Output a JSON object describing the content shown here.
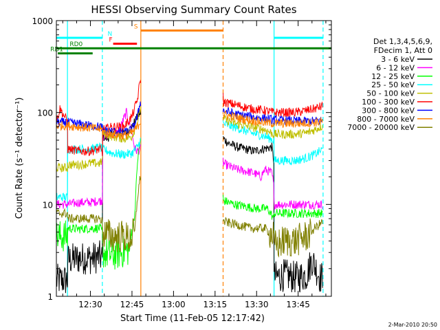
{
  "chart_data": {
    "type": "line",
    "title": "HESSI Observing Summary Count Rates",
    "xlabel": "Start Time (11-Feb-05 12:17:42)",
    "ylabel": "Count Rate (s⁻¹ detector⁻¹)",
    "yscale": "log",
    "xlim_minutes": [
      17.7,
      117.0
    ],
    "ylim": [
      1,
      1000
    ],
    "y_tick_labels": [
      "1",
      "10",
      "100",
      "1000"
    ],
    "x_tick_labels": [
      "12:30",
      "12:45",
      "13:00",
      "13:15",
      "13:30",
      "13:45"
    ],
    "x_tick_minutes": [
      30,
      45,
      60,
      75,
      90,
      105
    ],
    "footer_date": "2-Mar-2010 20:50",
    "legend": {
      "header": [
        "Det 1,3,4,5,6,9,",
        "FDecim 1, Att 0"
      ],
      "position": "right"
    },
    "time_markers": [
      {
        "minute": 21.7,
        "color": "#00ffff",
        "style": "solid"
      },
      {
        "minute": 34.3,
        "color": "#00ffff",
        "style": "dashed"
      },
      {
        "minute": 48.2,
        "color": "#ff8000",
        "style": "solid"
      },
      {
        "minute": 77.9,
        "color": "#ff8000",
        "style": "dashed"
      },
      {
        "minute": 96.3,
        "color": "#00ffff",
        "style": "solid"
      },
      {
        "minute": 114.0,
        "color": "#00ffff",
        "style": "dashed"
      }
    ],
    "flags": [
      {
        "label": "",
        "color": "#00ffff",
        "segments": [
          [
            17.7,
            34.3
          ],
          [
            96.3,
            114.0
          ]
        ],
        "level": 650
      },
      {
        "label": "N",
        "color": "#00ffff",
        "segments": [],
        "level": 650,
        "label_minute": 36.2
      },
      {
        "label": "S",
        "color": "#ff8000",
        "segments": [
          [
            48.2,
            77.9
          ]
        ],
        "level": 780,
        "label_minute": 45.7
      },
      {
        "label": "F",
        "color": "#ff0000",
        "segments": [
          [
            38.2,
            46.8
          ]
        ],
        "level": 560,
        "label_minute": 36.7
      },
      {
        "label": "RD0",
        "color": "#008000",
        "segments": [
          [
            17.7,
            117.0
          ]
        ],
        "level": 500,
        "label_minute": 22.5
      },
      {
        "label": "RD1",
        "color": "#008000",
        "segments": [
          [
            18.2,
            30.8
          ]
        ],
        "level": 440,
        "label_minute": 15.5
      }
    ],
    "series": [
      {
        "name": "3 - 6 keV",
        "color": "#000000",
        "x": [
          17.7,
          21.7,
          21.8,
          26.0,
          30.0,
          33.5,
          34.3,
          34.4,
          36.0,
          38.0,
          40.0,
          43.0,
          45.0,
          46.5,
          47.5,
          48.0,
          77.9,
          78.0,
          80.0,
          83.0,
          86.0,
          89.0,
          92.0,
          95.5,
          96.2,
          96.3,
          100.0,
          104.0,
          108.0,
          110.0,
          111.5,
          113.0,
          114.0
        ],
        "values": [
          1.5,
          1.5,
          2.5,
          2.6,
          2.6,
          2.7,
          2.5,
          55,
          52,
          60,
          58,
          60,
          70,
          85,
          95,
          100,
          55,
          52,
          46,
          42,
          40,
          38,
          40,
          42,
          30,
          1.6,
          1.7,
          1.6,
          1.7,
          2.5,
          2.0,
          1.6,
          1.6
        ]
      },
      {
        "name": "6 - 12 keV",
        "color": "#ff00ff",
        "x": [
          17.7,
          21.7,
          21.8,
          26.0,
          30.0,
          33.5,
          34.3,
          34.4,
          37.0,
          40.0,
          43.0,
          45.0,
          46.0,
          47.0,
          48.0,
          77.9,
          78.0,
          80.0,
          83.0,
          86.0,
          89.0,
          91.5,
          93.0,
          95.5,
          96.2,
          96.3,
          100.0,
          104.0,
          108.0,
          111.0,
          114.0
        ],
        "values": [
          10,
          10,
          10,
          10.5,
          10.5,
          11,
          11,
          55,
          58,
          60,
          100,
          60,
          40,
          38,
          40,
          30,
          28,
          26,
          24,
          23,
          22,
          20,
          24,
          22,
          16,
          10,
          10,
          10,
          10,
          10,
          10
        ]
      },
      {
        "name": "12 - 25 keV",
        "color": "#00ff00",
        "x": [
          17.7,
          21.7,
          21.8,
          26.0,
          30.0,
          33.5,
          34.3,
          34.4,
          38.0,
          41.0,
          44.0,
          46.0,
          47.0,
          48.0,
          77.9,
          78.0,
          82.0,
          86.0,
          90.0,
          94.0,
          96.2,
          96.3,
          100.0,
          104.0,
          108.0,
          111.0,
          114.0
        ],
        "values": [
          4.5,
          4.5,
          5.5,
          5.4,
          5.5,
          5.5,
          5.0,
          3.0,
          2.8,
          3.0,
          3.2,
          8,
          30,
          50,
          12,
          11,
          10,
          9.5,
          9,
          9,
          7,
          8,
          8,
          8,
          8,
          8,
          8
        ]
      },
      {
        "name": "25 - 50 keV",
        "color": "#00ffff",
        "x": [
          17.7,
          21.7,
          21.8,
          26.0,
          30.0,
          33.5,
          34.3,
          34.4,
          38.0,
          42.0,
          45.0,
          47.0,
          48.0,
          77.9,
          78.0,
          83.0,
          88.0,
          93.0,
          96.2,
          96.3,
          100.0,
          104.0,
          108.0,
          111.0,
          114.0
        ],
        "values": [
          12,
          12,
          40,
          40,
          40,
          42,
          40,
          40,
          36,
          35,
          36,
          42,
          50,
          80,
          75,
          68,
          60,
          55,
          50,
          30,
          30,
          30,
          32,
          35,
          40
        ]
      },
      {
        "name": "50 - 100 keV",
        "color": "#bfbf00",
        "x": [
          17.7,
          21.7,
          21.8,
          26.0,
          30.0,
          33.5,
          34.3,
          34.4,
          38.0,
          42.0,
          45.0,
          47.0,
          48.0,
          77.9,
          78.0,
          83.0,
          88.0,
          93.0,
          96.3,
          100.0,
          104.0,
          108.0,
          111.0,
          114.0
        ],
        "values": [
          25,
          25,
          27,
          27,
          28,
          28,
          30,
          60,
          55,
          52,
          55,
          80,
          110,
          90,
          85,
          75,
          70,
          65,
          58,
          58,
          58,
          60,
          65,
          72
        ]
      },
      {
        "name": "100 - 300 keV",
        "color": "#ff0000",
        "x": [
          17.7,
          19.0,
          21.7,
          21.8,
          26.0,
          30.0,
          33.5,
          34.3,
          34.4,
          38.0,
          42.0,
          45.0,
          47.0,
          48.0,
          77.9,
          78.0,
          83.0,
          88.0,
          93.0,
          96.3,
          100.0,
          104.0,
          108.0,
          111.0,
          114.0
        ],
        "values": [
          80,
          110,
          80,
          40,
          38,
          38,
          40,
          35,
          65,
          70,
          70,
          90,
          140,
          230,
          150,
          130,
          120,
          110,
          105,
          100,
          100,
          100,
          105,
          110,
          118
        ]
      },
      {
        "name": "300 - 800 keV",
        "color": "#0000ff",
        "x": [
          17.7,
          21.7,
          26.0,
          30.0,
          33.5,
          34.3,
          34.4,
          38.0,
          42.0,
          45.0,
          47.0,
          48.0,
          77.9,
          78.0,
          83.0,
          88.0,
          93.0,
          96.3,
          100.0,
          104.0,
          108.0,
          111.0,
          114.0
        ],
        "values": [
          78,
          78,
          75,
          72,
          70,
          68,
          65,
          62,
          60,
          65,
          90,
          130,
          110,
          105,
          95,
          90,
          86,
          83,
          82,
          81,
          80,
          81,
          82
        ]
      },
      {
        "name": "800 - 7000 keV",
        "color": "#ff8000",
        "x": [
          17.7,
          21.7,
          26.0,
          30.0,
          33.5,
          34.3,
          34.4,
          38.0,
          42.0,
          45.0,
          47.0,
          48.0,
          77.9,
          78.0,
          83.0,
          88.0,
          93.0,
          96.3,
          100.0,
          104.0,
          108.0,
          111.0,
          114.0
        ],
        "values": [
          72,
          72,
          70,
          68,
          66,
          64,
          62,
          58,
          56,
          60,
          70,
          80,
          100,
          95,
          88,
          82,
          78,
          76,
          76,
          76,
          77,
          78,
          80
        ]
      },
      {
        "name": "7000 - 20000 keV",
        "color": "#808000",
        "x": [
          17.7,
          21.7,
          21.8,
          26.0,
          30.0,
          33.5,
          34.3,
          34.4,
          38.0,
          42.0,
          44.0,
          46.0,
          47.0,
          48.0,
          77.9,
          78.0,
          83.0,
          88.0,
          93.0,
          96.2,
          96.3,
          100.0,
          104.0,
          108.0,
          111.0,
          114.0
        ],
        "values": [
          8,
          8,
          7,
          7,
          7,
          7,
          6.5,
          5,
          4.5,
          4.5,
          4.2,
          5,
          12,
          20,
          7,
          6.5,
          6,
          5.5,
          5.5,
          4.5,
          3.5,
          4,
          4,
          4.5,
          5.5,
          6.5
        ]
      }
    ]
  }
}
